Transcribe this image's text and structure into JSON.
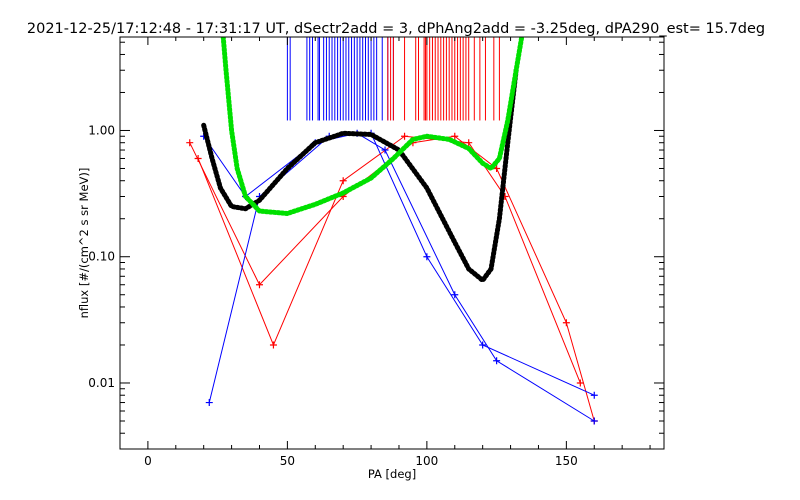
{
  "chart_data": {
    "type": "line",
    "title": "2021-12-25/17:12:48 - 17:31:17 UT, dSectr2add = 3, dPhAng2add = -3.25deg, dPA290_est=  15.7deg",
    "xlabel": "PA [deg]",
    "ylabel": "nflux [#/(cm^2 s sr MeV)]",
    "xlim": [
      -10,
      185
    ],
    "ylim": [
      0.003,
      5.5
    ],
    "yscale": "log",
    "grid": false,
    "x_ticks": [
      {
        "value": 0,
        "label": "0"
      },
      {
        "value": 50,
        "label": "50"
      },
      {
        "value": 100,
        "label": "100"
      },
      {
        "value": 150,
        "label": "150"
      }
    ],
    "y_ticks": [
      {
        "value": 0.01,
        "label": "0.01"
      },
      {
        "value": 0.1,
        "label": "0.10"
      },
      {
        "value": 1,
        "label": "1.00"
      }
    ],
    "colors": {
      "red_series": "#ff0000",
      "blue_series": "#0000ff",
      "black_fit": "#000000",
      "green_fit": "#00e000",
      "ticks_line": "#000080"
    },
    "series": [
      {
        "color": "red",
        "points": [
          [
            15,
            0.8
          ],
          [
            40,
            0.06
          ],
          [
            70,
            0.3
          ],
          [
            95,
            0.8
          ],
          [
            110,
            0.9
          ],
          [
            125,
            0.5
          ],
          [
            150,
            0.03
          ],
          [
            160,
            0.005
          ]
        ]
      },
      {
        "color": "red",
        "points": [
          [
            18,
            0.6
          ],
          [
            45,
            0.02
          ],
          [
            70,
            0.4
          ],
          [
            92,
            0.9
          ],
          [
            115,
            0.8
          ],
          [
            128,
            0.3
          ],
          [
            155,
            0.01
          ]
        ]
      },
      {
        "color": "blue",
        "points": [
          [
            20,
            0.9
          ],
          [
            35,
            0.3
          ],
          [
            60,
            0.8
          ],
          [
            75,
            0.95
          ],
          [
            85,
            0.7
          ],
          [
            110,
            0.05
          ],
          [
            125,
            0.015
          ],
          [
            160,
            0.005
          ]
        ]
      },
      {
        "color": "blue",
        "points": [
          [
            22,
            0.007
          ],
          [
            40,
            0.3
          ],
          [
            65,
            0.9
          ],
          [
            80,
            0.95
          ],
          [
            100,
            0.1
          ],
          [
            120,
            0.02
          ],
          [
            160,
            0.008
          ]
        ]
      }
    ],
    "fits": [
      {
        "name": "",
        "color": "black",
        "points": [
          [
            20,
            1.1
          ],
          [
            23,
            0.6
          ],
          [
            26,
            0.35
          ],
          [
            30,
            0.25
          ],
          [
            35,
            0.24
          ],
          [
            40,
            0.28
          ],
          [
            50,
            0.5
          ],
          [
            60,
            0.8
          ],
          [
            70,
            0.95
          ],
          [
            80,
            0.93
          ],
          [
            90,
            0.7
          ],
          [
            100,
            0.35
          ],
          [
            110,
            0.13
          ],
          [
            115,
            0.08
          ],
          [
            120,
            0.065
          ],
          [
            123,
            0.08
          ],
          [
            126,
            0.2
          ],
          [
            129,
            0.8
          ],
          [
            132,
            3.0
          ]
        ]
      },
      {
        "name": "",
        "color": "green",
        "points": [
          [
            27,
            5.5
          ],
          [
            28,
            3.0
          ],
          [
            30,
            1.0
          ],
          [
            32,
            0.5
          ],
          [
            35,
            0.3
          ],
          [
            40,
            0.23
          ],
          [
            50,
            0.22
          ],
          [
            60,
            0.26
          ],
          [
            70,
            0.32
          ],
          [
            80,
            0.42
          ],
          [
            88,
            0.6
          ],
          [
            95,
            0.85
          ],
          [
            100,
            0.9
          ],
          [
            108,
            0.85
          ],
          [
            115,
            0.72
          ],
          [
            120,
            0.55
          ],
          [
            123,
            0.5
          ],
          [
            126,
            0.6
          ],
          [
            129,
            1.2
          ],
          [
            132,
            3.0
          ],
          [
            134,
            5.5
          ]
        ]
      }
    ],
    "channel_markers_y": [
      1.2,
      5.5
    ],
    "channel_markers_blue_x": [
      50,
      51,
      57,
      58,
      59,
      61,
      61.5,
      63,
      64,
      65,
      66,
      67,
      68,
      69,
      70,
      71,
      72,
      73,
      74,
      75,
      76,
      77,
      78,
      79,
      80,
      81,
      82,
      84,
      86,
      88
    ],
    "channel_markers_red_x": [
      86,
      87,
      88,
      92,
      96,
      97,
      99,
      99.5,
      100,
      101,
      102,
      103,
      104,
      105,
      106,
      107,
      108,
      109,
      110,
      111,
      112,
      113,
      114,
      115,
      117,
      119,
      121,
      124,
      126
    ]
  }
}
